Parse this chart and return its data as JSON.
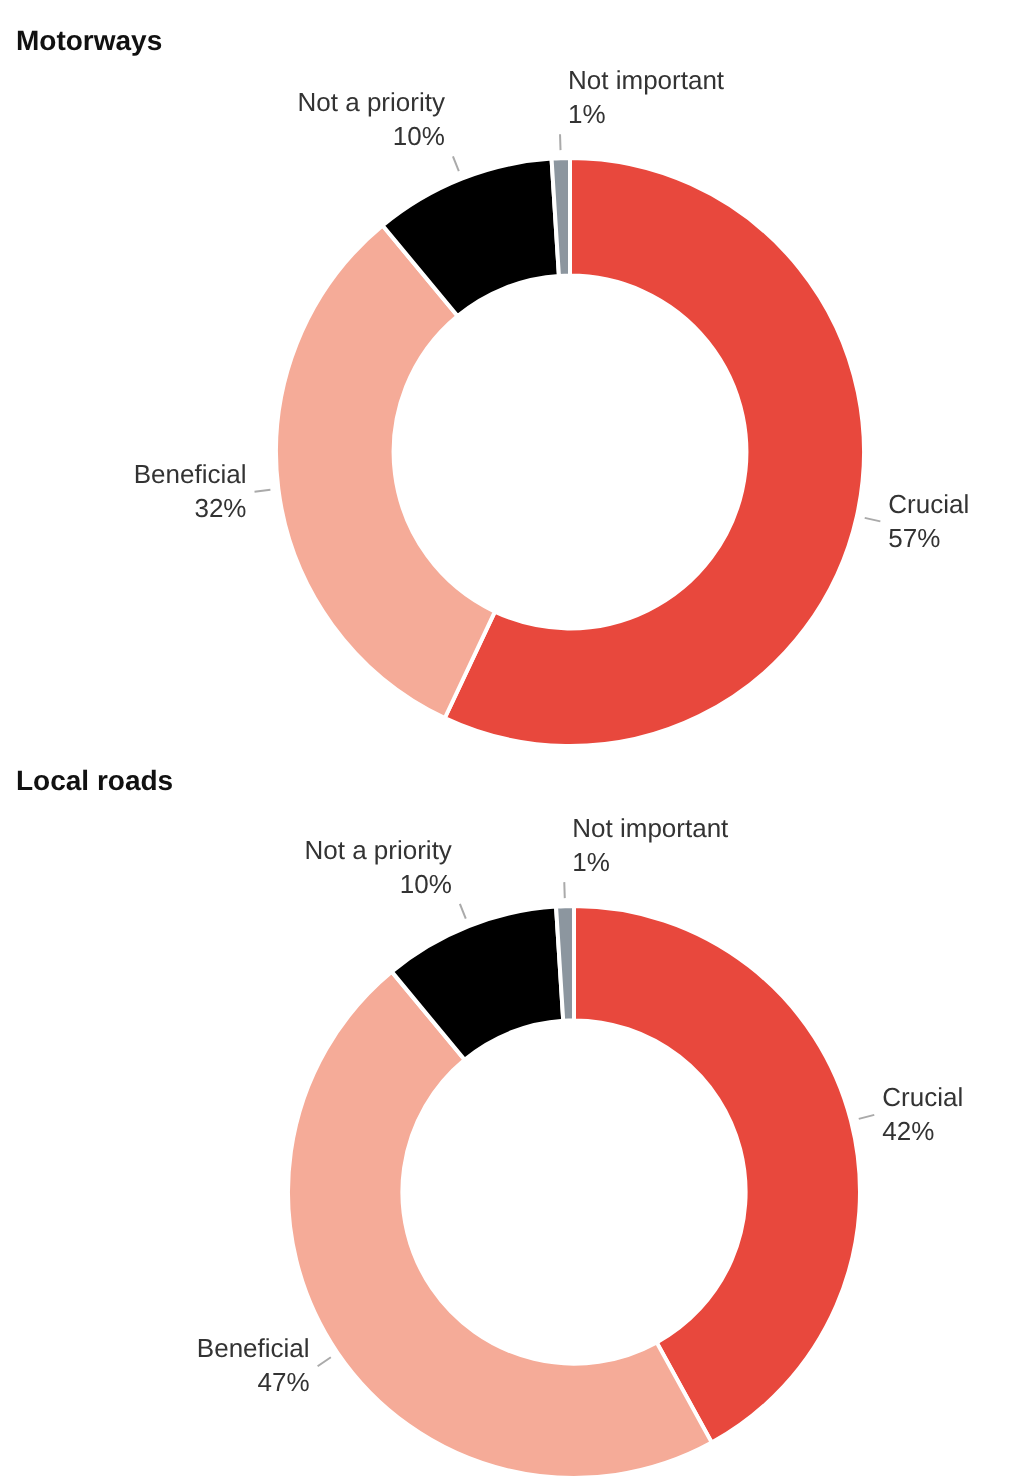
{
  "chart_data": [
    {
      "type": "donut",
      "title": "Motorways",
      "categories": [
        "Crucial",
        "Beneficial",
        "Not a priority",
        "Not important"
      ],
      "values": [
        57,
        32,
        10,
        1
      ],
      "colors": [
        "#e8483d",
        "#f5ab98",
        "#000000",
        "#8c969f"
      ],
      "value_labels": [
        "57%",
        "32%",
        "10%",
        "1%"
      ]
    },
    {
      "type": "donut",
      "title": "Local roads",
      "categories": [
        "Crucial",
        "Beneficial",
        "Not a priority",
        "Not important"
      ],
      "values": [
        42,
        47,
        10,
        1
      ],
      "colors": [
        "#e8483d",
        "#f5ab98",
        "#000000",
        "#8c969f"
      ],
      "value_labels": [
        "42%",
        "47%",
        "10%",
        "1%"
      ]
    }
  ]
}
